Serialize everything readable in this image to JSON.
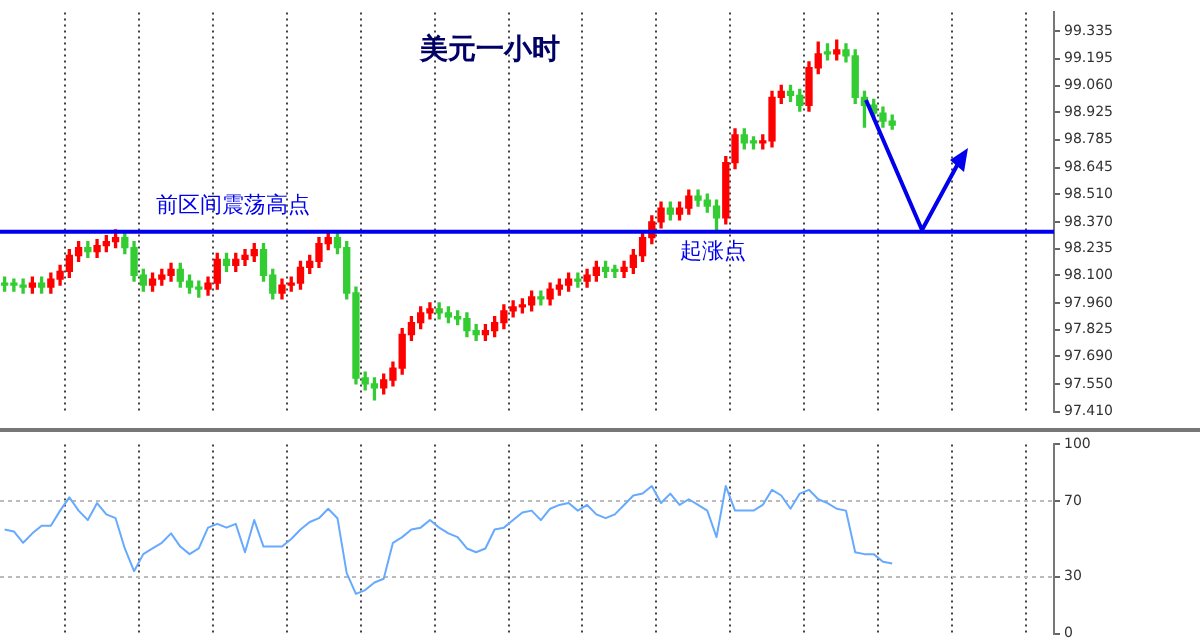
{
  "chart_data": [
    {
      "type": "candlestick",
      "title": "美元一小时",
      "categories": [
        null,
        null,
        null,
        null,
        null,
        null,
        null,
        null,
        null,
        null,
        null,
        null,
        null,
        null,
        null,
        null,
        null,
        null,
        null,
        null,
        null,
        null,
        null,
        null,
        null,
        null,
        null,
        null,
        null,
        null,
        null,
        null,
        null,
        null,
        null,
        null,
        null,
        null,
        null,
        null,
        null,
        null,
        null,
        null,
        null,
        null,
        null,
        null,
        null,
        null,
        null,
        null,
        null,
        null,
        null,
        null,
        null,
        null,
        null,
        null,
        null,
        null,
        null,
        null,
        null,
        null,
        null,
        null,
        null,
        null,
        null,
        null,
        null,
        null,
        null,
        null,
        null,
        null,
        null,
        null,
        null,
        null,
        null,
        null,
        null,
        null,
        null,
        null,
        null,
        null,
        null,
        null,
        null,
        null,
        null,
        null,
        null,
        null,
        null,
        null,
        null,
        null,
        null,
        null,
        null,
        null,
        null,
        null,
        null,
        null,
        null,
        null,
        null,
        null
      ],
      "ohlc": [
        [
          98.06,
          98.09,
          98.02,
          98.05
        ],
        [
          98.05,
          98.08,
          98.02,
          98.05
        ],
        [
          98.05,
          98.08,
          98.01,
          98.04
        ],
        [
          98.04,
          98.09,
          98.01,
          98.06
        ],
        [
          98.06,
          98.09,
          98.01,
          98.04
        ],
        [
          98.04,
          98.11,
          98.01,
          98.08
        ],
        [
          98.08,
          98.15,
          98.05,
          98.12
        ],
        [
          98.12,
          98.23,
          98.09,
          98.2
        ],
        [
          98.2,
          98.27,
          98.17,
          98.24
        ],
        [
          98.24,
          98.27,
          98.19,
          98.22
        ],
        [
          98.22,
          98.28,
          98.19,
          98.25
        ],
        [
          98.25,
          98.3,
          98.22,
          98.27
        ],
        [
          98.27,
          98.33,
          98.24,
          98.29
        ],
        [
          98.29,
          98.32,
          98.21,
          98.24
        ],
        [
          98.24,
          98.27,
          98.07,
          98.1
        ],
        [
          98.1,
          98.13,
          98.02,
          98.05
        ],
        [
          98.05,
          98.11,
          98.02,
          98.08
        ],
        [
          98.08,
          98.13,
          98.05,
          98.1
        ],
        [
          98.1,
          98.16,
          98.07,
          98.13
        ],
        [
          98.13,
          98.16,
          98.04,
          98.07
        ],
        [
          98.07,
          98.1,
          98.01,
          98.04
        ],
        [
          98.04,
          98.07,
          97.99,
          98.03
        ],
        [
          98.03,
          98.09,
          98.0,
          98.06
        ],
        [
          98.06,
          98.21,
          98.03,
          98.18
        ],
        [
          98.18,
          98.21,
          98.12,
          98.15
        ],
        [
          98.15,
          98.21,
          98.12,
          98.18
        ],
        [
          98.18,
          98.23,
          98.15,
          98.2
        ],
        [
          98.2,
          98.26,
          98.17,
          98.23
        ],
        [
          98.23,
          98.26,
          98.07,
          98.1
        ],
        [
          98.1,
          98.13,
          97.98,
          98.01
        ],
        [
          98.01,
          98.08,
          97.98,
          98.05
        ],
        [
          98.05,
          98.09,
          98.02,
          98.06
        ],
        [
          98.06,
          98.17,
          98.03,
          98.14
        ],
        [
          98.14,
          98.2,
          98.11,
          98.17
        ],
        [
          98.17,
          98.29,
          98.14,
          98.26
        ],
        [
          98.26,
          98.32,
          98.23,
          98.29
        ],
        [
          98.29,
          98.32,
          98.21,
          98.24
        ],
        [
          98.24,
          98.27,
          97.98,
          98.01
        ],
        [
          98.01,
          98.04,
          97.55,
          97.58
        ],
        [
          97.58,
          97.61,
          97.52,
          97.55
        ],
        [
          97.55,
          97.58,
          97.47,
          97.53
        ],
        [
          97.53,
          97.6,
          97.5,
          97.57
        ],
        [
          97.57,
          97.66,
          97.54,
          97.63
        ],
        [
          97.63,
          97.83,
          97.6,
          97.8
        ],
        [
          97.8,
          97.89,
          97.77,
          97.86
        ],
        [
          97.86,
          97.94,
          97.83,
          97.91
        ],
        [
          97.91,
          97.96,
          97.88,
          97.93
        ],
        [
          97.93,
          97.96,
          97.88,
          97.91
        ],
        [
          97.91,
          97.94,
          97.86,
          97.89
        ],
        [
          97.89,
          97.92,
          97.85,
          97.88
        ],
        [
          97.88,
          97.91,
          97.79,
          97.82
        ],
        [
          97.82,
          97.85,
          97.77,
          97.8
        ],
        [
          97.8,
          97.85,
          97.77,
          97.82
        ],
        [
          97.82,
          97.89,
          97.79,
          97.86
        ],
        [
          97.86,
          97.95,
          97.83,
          97.92
        ],
        [
          97.92,
          97.97,
          97.89,
          97.94
        ],
        [
          97.94,
          97.98,
          97.91,
          97.95
        ],
        [
          97.95,
          98.02,
          97.92,
          97.99
        ],
        [
          97.99,
          98.02,
          97.95,
          97.98
        ],
        [
          97.98,
          98.06,
          97.95,
          98.03
        ],
        [
          98.03,
          98.08,
          98.0,
          98.05
        ],
        [
          98.05,
          98.11,
          98.02,
          98.08
        ],
        [
          98.08,
          98.11,
          98.04,
          98.07
        ],
        [
          98.07,
          98.13,
          98.04,
          98.1
        ],
        [
          98.1,
          98.17,
          98.07,
          98.14
        ],
        [
          98.14,
          98.17,
          98.09,
          98.12
        ],
        [
          98.12,
          98.15,
          98.09,
          98.12
        ],
        [
          98.12,
          98.17,
          98.09,
          98.14
        ],
        [
          98.14,
          98.23,
          98.11,
          98.2
        ],
        [
          98.2,
          98.32,
          98.17,
          98.29
        ],
        [
          98.29,
          98.4,
          98.26,
          98.37
        ],
        [
          98.37,
          98.47,
          98.34,
          98.44
        ],
        [
          98.44,
          98.47,
          98.38,
          98.41
        ],
        [
          98.41,
          98.47,
          98.38,
          98.44
        ],
        [
          98.44,
          98.53,
          98.41,
          98.5
        ],
        [
          98.5,
          98.53,
          98.45,
          98.48
        ],
        [
          98.48,
          98.51,
          98.42,
          98.45
        ],
        [
          98.45,
          98.48,
          98.32,
          98.39
        ],
        [
          98.39,
          98.7,
          98.36,
          98.67
        ],
        [
          98.67,
          98.84,
          98.64,
          98.81
        ],
        [
          98.81,
          98.84,
          98.74,
          98.77
        ],
        [
          98.77,
          98.8,
          98.74,
          98.77
        ],
        [
          98.77,
          98.81,
          98.74,
          98.78
        ],
        [
          98.78,
          99.03,
          98.75,
          99.0
        ],
        [
          99.0,
          99.06,
          98.97,
          99.03
        ],
        [
          99.03,
          99.06,
          98.98,
          99.01
        ],
        [
          99.01,
          99.04,
          98.93,
          98.96
        ],
        [
          98.96,
          99.18,
          98.93,
          99.15
        ],
        [
          99.15,
          99.28,
          99.12,
          99.22
        ],
        [
          99.22,
          99.27,
          99.19,
          99.22
        ],
        [
          99.22,
          99.29,
          99.19,
          99.24
        ],
        [
          99.24,
          99.27,
          99.18,
          99.21
        ],
        [
          99.21,
          99.24,
          98.97,
          99.0
        ],
        [
          99.0,
          99.03,
          98.85,
          98.96
        ],
        [
          98.96,
          98.99,
          98.89,
          98.92
        ],
        [
          98.92,
          98.95,
          98.85,
          98.88
        ],
        [
          98.88,
          98.91,
          98.84,
          98.86
        ],
        null,
        null,
        null,
        null,
        null,
        null,
        null,
        null,
        null,
        null,
        null,
        null,
        null,
        null,
        null,
        null,
        null
      ],
      "colors": [
        "#33cc33",
        "#33cc33",
        "#33cc33",
        "#ff0000",
        "#33cc33",
        "#ff0000",
        "#ff0000",
        "#ff0000",
        "#ff0000",
        "#33cc33",
        "#ff0000",
        "#ff0000",
        "#ff0000",
        "#33cc33",
        "#33cc33",
        "#33cc33",
        "#ff0000",
        "#ff0000",
        "#ff0000",
        "#33cc33",
        "#33cc33",
        "#33cc33",
        "#ff0000",
        "#ff0000",
        "#33cc33",
        "#ff0000",
        "#ff0000",
        "#ff0000",
        "#33cc33",
        "#33cc33",
        "#ff0000",
        "#ff0000",
        "#ff0000",
        "#ff0000",
        "#ff0000",
        "#ff0000",
        "#33cc33",
        "#33cc33",
        "#33cc33",
        "#33cc33",
        "#33cc33",
        "#ff0000",
        "#ff0000",
        "#ff0000",
        "#ff0000",
        "#ff0000",
        "#ff0000",
        "#33cc33",
        "#33cc33",
        "#33cc33",
        "#33cc33",
        "#33cc33",
        "#ff0000",
        "#ff0000",
        "#ff0000",
        "#ff0000",
        "#ff0000",
        "#ff0000",
        "#33cc33",
        "#ff0000",
        "#ff0000",
        "#ff0000",
        "#33cc33",
        "#ff0000",
        "#ff0000",
        "#33cc33",
        "#33cc33",
        "#ff0000",
        "#ff0000",
        "#ff0000",
        "#ff0000",
        "#ff0000",
        "#33cc33",
        "#ff0000",
        "#ff0000",
        "#33cc33",
        "#33cc33",
        "#33cc33",
        "#ff0000",
        "#ff0000",
        "#33cc33",
        "#33cc33",
        "#ff0000",
        "#ff0000",
        "#ff0000",
        "#33cc33",
        "#33cc33",
        "#ff0000",
        "#ff0000",
        "#33cc33",
        "#ff0000",
        "#33cc33",
        "#33cc33",
        "#33cc33",
        "#33cc33",
        "#33cc33",
        "#33cc33",
        null,
        null,
        null,
        null,
        null,
        null,
        null,
        null,
        null,
        null,
        null,
        null,
        null,
        null,
        null,
        null,
        null
      ],
      "ylim": [
        97.41,
        99.43
      ],
      "yticks": [
        {
          "value": 97.41,
          "label": "97.410"
        },
        {
          "value": 97.55,
          "label": "97.550"
        },
        {
          "value": 97.69,
          "label": "97.690"
        },
        97.825,
        {
          "value": 97.96,
          "label": "97.960"
        },
        {
          "value": 98.1,
          "label": "98.100"
        },
        98.235,
        {
          "value": 98.37,
          "label": "98.370"
        },
        {
          "value": 98.51,
          "label": "98.510"
        },
        98.645,
        98.785,
        98.925,
        {
          "value": 99.06,
          "label": "99.060"
        },
        99.195,
        99.335
      ],
      "ref_lines": [
        {
          "axis": "y",
          "value": 98.32,
          "label": "前区间震荡高点",
          "color": "#0000ee"
        }
      ],
      "annotations": [
        {
          "text": "起涨点",
          "y": 98.32
        }
      ],
      "grid": "x",
      "tick_labels": "y"
    },
    {
      "type": "line",
      "categories": [
        null,
        null,
        null,
        null,
        null,
        null,
        null,
        null,
        null,
        null,
        null,
        null,
        null,
        null,
        null,
        null,
        null,
        null,
        null,
        null,
        null,
        null,
        null,
        null,
        null,
        null,
        null,
        null,
        null,
        null,
        null,
        null,
        null,
        null,
        null,
        null,
        null,
        null,
        null,
        null,
        null,
        null,
        null,
        null,
        null,
        null,
        null,
        null,
        null,
        null,
        null,
        null,
        null,
        null,
        null,
        null,
        null,
        null,
        null,
        null,
        null,
        null,
        null,
        null,
        null,
        null,
        null,
        null,
        null,
        null,
        null,
        null,
        null,
        null,
        null,
        null,
        null,
        null,
        null,
        null,
        null,
        null,
        null,
        null,
        null,
        null,
        null,
        null,
        null,
        null,
        null,
        null,
        null,
        null,
        null,
        null,
        null,
        null,
        null,
        null,
        null,
        null,
        null,
        null,
        null,
        null,
        null,
        null,
        null,
        null,
        null,
        null,
        null,
        null
      ],
      "values": [
        55,
        54,
        48,
        53,
        57,
        57,
        65,
        72,
        65,
        60,
        69,
        63,
        61,
        45,
        33,
        42,
        45,
        48,
        53,
        46,
        42,
        45,
        56,
        58,
        56,
        58,
        43,
        60,
        46,
        46,
        46,
        50,
        55,
        59,
        61,
        66,
        61,
        32,
        21,
        23,
        27,
        29,
        48,
        51,
        55,
        56,
        60,
        56,
        53,
        51,
        45,
        43,
        45,
        55,
        56,
        60,
        64,
        65,
        60,
        66,
        68,
        69,
        65,
        68,
        63,
        61,
        63,
        68,
        73,
        74,
        78,
        69,
        74,
        68,
        71,
        68,
        65,
        51,
        78,
        65,
        65,
        65,
        68,
        76,
        73,
        66,
        74,
        76,
        71,
        69,
        66,
        65,
        43,
        42,
        42,
        38,
        37,
        null,
        null,
        null,
        null,
        null,
        null,
        null,
        null,
        null,
        null,
        null,
        null,
        null,
        null,
        null,
        null,
        null
      ],
      "color": "#66aaff",
      "ylim": [
        0,
        100
      ],
      "yticks": [
        0,
        30,
        70,
        100
      ],
      "grid": true,
      "tick_labels": "y",
      "marker": "none"
    }
  ]
}
